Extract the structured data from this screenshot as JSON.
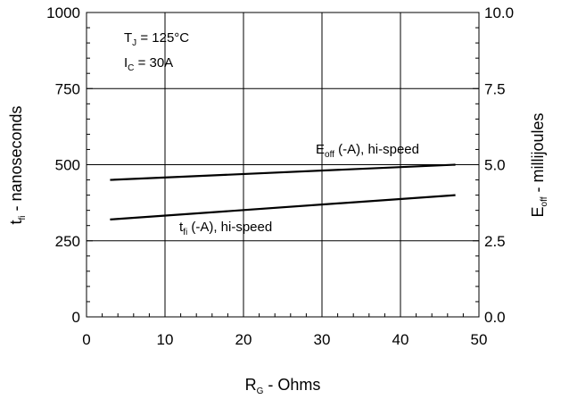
{
  "chart_data": {
    "type": "line",
    "x": [
      3,
      47
    ],
    "xlabel": {
      "main": "R",
      "sub": "G",
      "rest": " - Ohms"
    },
    "ylabel_left": {
      "main": "t",
      "sub": "fi",
      "rest": " - nanoseconds"
    },
    "ylabel_right": {
      "main": "E",
      "sub": "off",
      "rest": " - millijoules"
    },
    "xlim": [
      0,
      50
    ],
    "ylim_left": [
      0,
      1000
    ],
    "ylim_right": [
      0.0,
      10.0
    ],
    "xticks": [
      "0",
      "10",
      "20",
      "30",
      "40",
      "50"
    ],
    "yticks_left": [
      "0",
      "250",
      "500",
      "750",
      "1000"
    ],
    "yticks_right": [
      "0.0",
      "2.5",
      "5.0",
      "7.5",
      "10.0"
    ],
    "grid": true,
    "conditions": [
      {
        "main": "T",
        "sub": "J",
        "rest": " = 125°C"
      },
      {
        "main": "I",
        "sub": "C",
        "rest": " = 30A"
      }
    ],
    "series": [
      {
        "axis": "right",
        "label": {
          "main": "E",
          "sub": "off",
          "rest": " (-A), hi-speed"
        },
        "x": [
          3,
          47
        ],
        "y": [
          4.5,
          5.0
        ]
      },
      {
        "axis": "left",
        "label": {
          "main": "t",
          "sub": "fi",
          "rest": " (-A), hi-speed"
        },
        "x": [
          3,
          47
        ],
        "y": [
          320,
          400
        ]
      }
    ],
    "line_color": "#000000"
  }
}
